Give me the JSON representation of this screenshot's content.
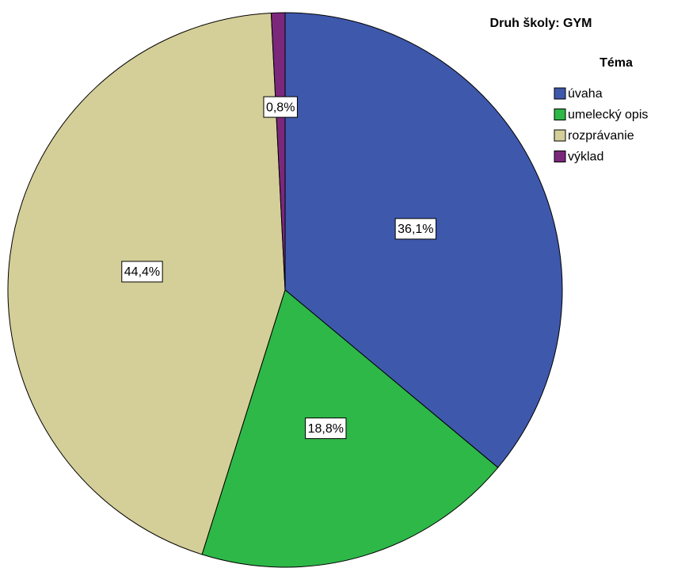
{
  "chart_data": {
    "type": "pie",
    "title": "Druh školy: GYM",
    "legend_title": "Téma",
    "categories": [
      "úvaha",
      "umelecký opis",
      "rozprávanie",
      "výklad"
    ],
    "values": [
      36.1,
      18.8,
      44.4,
      0.8
    ],
    "value_labels": [
      "36,1%",
      "18,8%",
      "44,4%",
      "0,8%"
    ],
    "colors": [
      "#3e58ac",
      "#2eb848",
      "#d4cf98",
      "#7b287c"
    ],
    "legend": "top-right"
  }
}
